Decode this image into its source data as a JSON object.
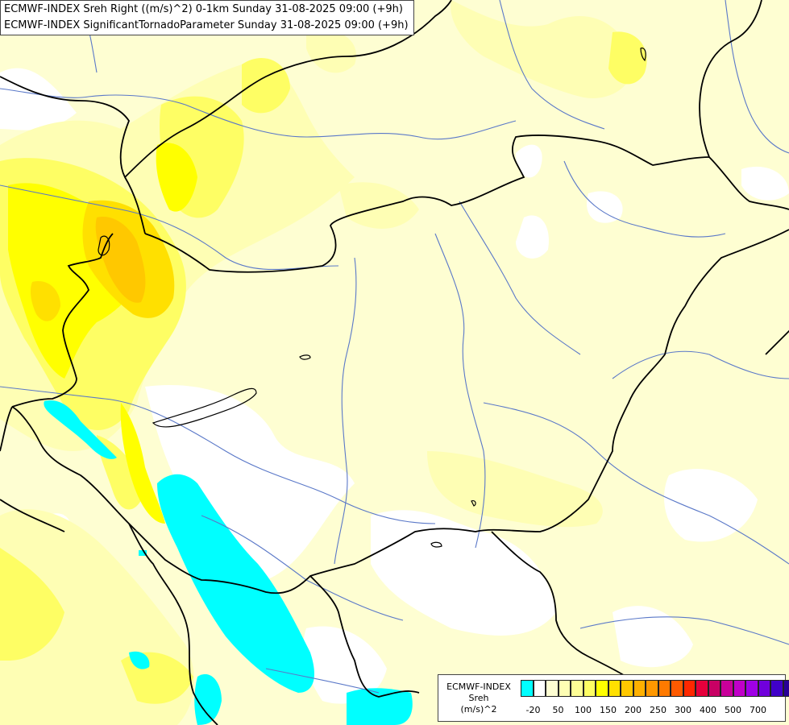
{
  "title_lines": [
    "ECMWF-INDEX Sreh Right ((m/s)^2) 0-1km Sunday 31-08-2025 09:00 (+9h)",
    "ECMWF-INDEX SignificantTornadoParameter Sunday 31-08-2025 09:00 (+9h)"
  ],
  "legend": {
    "line1": "ECMWF-INDEX",
    "line2": "Sreh",
    "line3": "(m/s)^2",
    "colors": [
      "#00ffff",
      "#ffffff",
      "#fefed2",
      "#fefeb4",
      "#fefe96",
      "#fefe64",
      "#ffff00",
      "#ffe000",
      "#ffc800",
      "#ffb000",
      "#ff9800",
      "#ff7a00",
      "#ff5a00",
      "#ff2800",
      "#e6003c",
      "#c80064",
      "#c8009a",
      "#c000c8",
      "#a000e6",
      "#7000dc",
      "#4000c8",
      "#280096",
      "#000078"
    ],
    "ticks": [
      "-20",
      "50",
      "100",
      "150",
      "200",
      "250",
      "300",
      "400",
      "500",
      "700"
    ]
  },
  "colors": {
    "cyan": "#00ffff",
    "pale_yellow": "#fefed2",
    "light_yellow": "#fefeb4",
    "yellow": "#fefe64",
    "bright_yellow": "#ffff00",
    "gold": "#ffe000",
    "orange": "#ffc800",
    "river": "#5a78c8",
    "border": "#000000"
  }
}
